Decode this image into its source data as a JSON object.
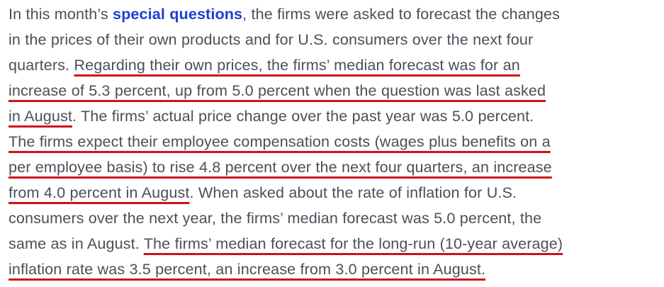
{
  "paragraph": {
    "line1": {
      "before_link": "In this month’s ",
      "link": "special questions",
      "after_link": ", the firms were asked to forecast the changes"
    },
    "line2": {
      "text": "in the prices of their own products and for U.S. consumers over the next four"
    },
    "line3": {
      "plain": "quarters. ",
      "highlight": "Regarding their own prices, the firms’ median forecast was for an"
    },
    "line4": {
      "highlight": "increase of 5.3 percent, up from 5.0 percent when the question was last asked"
    },
    "line5": {
      "highlight": "in August",
      "plain": ". The firms’ actual price change over the past year was 5.0 percent."
    },
    "line6": {
      "highlight": "The firms expect their employee compensation costs (wages plus benefits on a"
    },
    "line7": {
      "highlight": "per employee basis) to rise 4.8 percent over the next four quarters, an increase"
    },
    "line8": {
      "highlight": "from 4.0 percent in August",
      "plain": ". When asked about the rate of inflation for U.S."
    },
    "line9": {
      "text": "consumers over the next year, the firms’ median forecast was 5.0 percent, the"
    },
    "line10": {
      "plain": "same as in August. ",
      "highlight": "The firms’ median forecast for the long-run (10-year average)"
    },
    "line11": {
      "highlight": "inflation rate was 3.5 percent, an increase from 3.0 percent in August."
    }
  },
  "colors": {
    "text": "#4b4f58",
    "link": "#1f3fd1",
    "underline_highlight": "#d0101c",
    "background": "#ffffff"
  }
}
